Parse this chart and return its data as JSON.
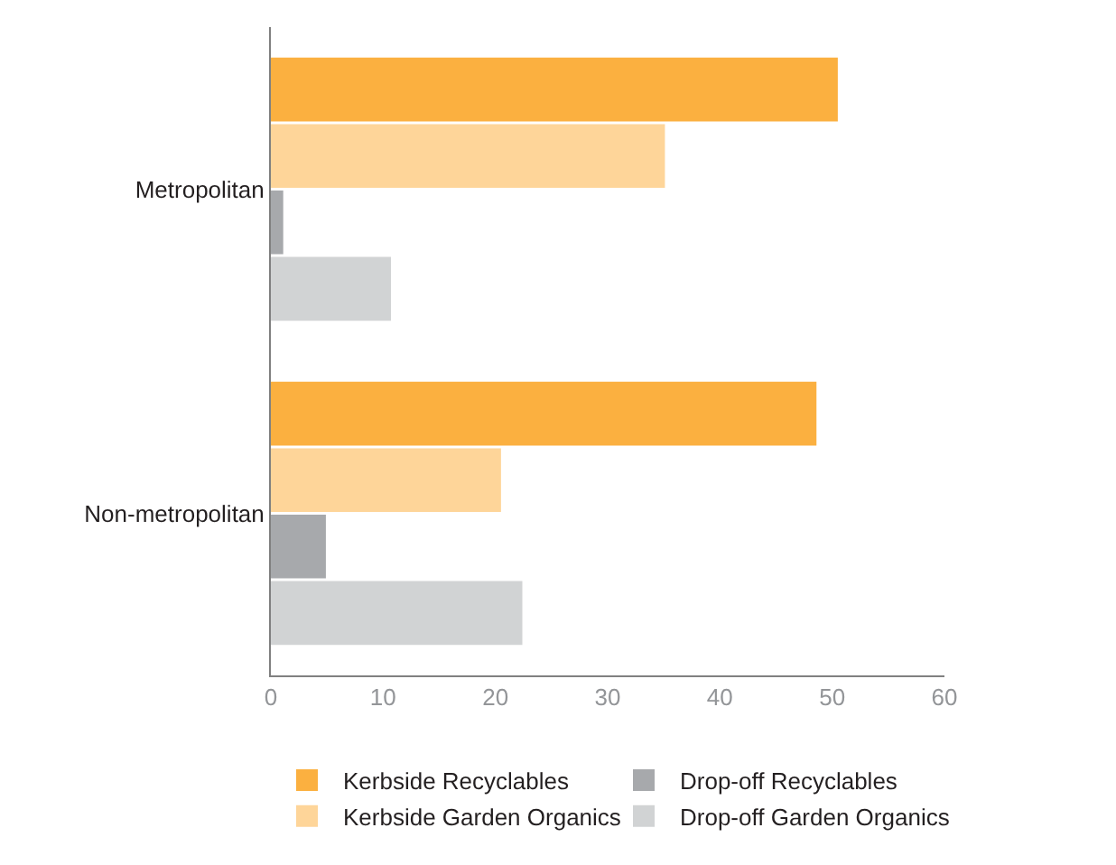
{
  "chart_data": {
    "type": "bar",
    "orientation": "horizontal",
    "categories": [
      "Metropolitan",
      "Non-metropolitan"
    ],
    "series": [
      {
        "name": "Kerbside Recyclables",
        "color": "#fbb040",
        "values": [
          50.5,
          48.6
        ]
      },
      {
        "name": "Kerbside Garden Organics",
        "color": "#fed599",
        "values": [
          35.1,
          20.5
        ]
      },
      {
        "name": "Drop-off Recyclables",
        "color": "#a7a9ac",
        "values": [
          1.1,
          4.9
        ]
      },
      {
        "name": "Drop-off Garden Organics",
        "color": "#d1d3d4",
        "values": [
          10.7,
          22.4
        ]
      }
    ],
    "xlim": [
      0,
      60
    ],
    "xticks": [
      0,
      10,
      20,
      30,
      40,
      50,
      60
    ],
    "legend": "bottom"
  }
}
